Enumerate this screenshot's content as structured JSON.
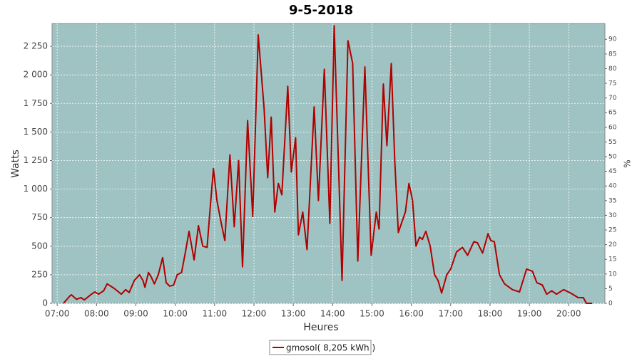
{
  "chart_data": {
    "type": "line",
    "title": "9-5-2018",
    "x_label": "Heures",
    "y_label": "Watts",
    "y2_label": "%",
    "x": [
      7.16,
      7.31,
      7.36,
      7.49,
      7.6,
      7.69,
      7.87,
      7.96,
      8.05,
      8.18,
      8.27,
      8.45,
      8.63,
      8.74,
      8.83,
      8.96,
      9.09,
      9.18,
      9.23,
      9.32,
      9.39,
      9.47,
      9.57,
      9.68,
      9.77,
      9.86,
      9.96,
      10.05,
      10.16,
      10.26,
      10.35,
      10.48,
      10.59,
      10.7,
      10.81,
      10.88,
      10.97,
      11.06,
      11.17,
      11.26,
      11.39,
      11.5,
      11.61,
      11.71,
      11.84,
      11.97,
      12.11,
      12.26,
      12.35,
      12.44,
      12.53,
      12.62,
      12.71,
      12.86,
      12.95,
      13.06,
      13.13,
      13.24,
      13.35,
      13.53,
      13.64,
      13.79,
      13.93,
      14.04,
      14.15,
      14.24,
      14.39,
      14.51,
      14.64,
      14.82,
      14.98,
      15.11,
      15.18,
      15.29,
      15.38,
      15.49,
      15.58,
      15.67,
      15.85,
      15.94,
      16.03,
      16.12,
      16.21,
      16.28,
      16.37,
      16.48,
      16.59,
      16.68,
      16.77,
      16.9,
      17.0,
      17.15,
      17.3,
      17.43,
      17.59,
      17.68,
      17.81,
      17.95,
      18.02,
      18.11,
      18.24,
      18.37,
      18.57,
      18.75,
      18.93,
      19.08,
      19.19,
      19.33,
      19.44,
      19.57,
      19.69,
      19.87,
      20.05,
      20.24,
      20.37,
      20.45,
      20.6
    ],
    "series": [
      {
        "name": "gmosol( 8,205 kWh )",
        "color": "#b00000",
        "values": [
          0,
          60,
          75,
          35,
          50,
          30,
          80,
          100,
          80,
          110,
          170,
          130,
          80,
          120,
          95,
          200,
          250,
          200,
          140,
          270,
          230,
          170,
          250,
          400,
          180,
          150,
          160,
          250,
          270,
          450,
          630,
          380,
          680,
          500,
          490,
          800,
          1180,
          900,
          700,
          550,
          1300,
          670,
          1250,
          320,
          1600,
          760,
          2350,
          1700,
          1100,
          1630,
          800,
          1050,
          950,
          1900,
          1150,
          1450,
          600,
          800,
          470,
          1720,
          900,
          2050,
          700,
          2430,
          1200,
          200,
          2300,
          2100,
          370,
          2070,
          420,
          800,
          650,
          1920,
          1380,
          2100,
          1250,
          620,
          800,
          1050,
          900,
          500,
          580,
          560,
          630,
          500,
          250,
          200,
          90,
          250,
          300,
          450,
          490,
          420,
          540,
          530,
          440,
          610,
          550,
          540,
          250,
          170,
          120,
          100,
          300,
          280,
          180,
          160,
          80,
          110,
          80,
          120,
          90,
          50,
          50,
          0,
          0
        ]
      }
    ],
    "xlim": [
      6.87,
      20.92
    ],
    "xticks": [
      {
        "value": 7,
        "label": "07:00"
      },
      {
        "value": 8,
        "label": "08:00"
      },
      {
        "value": 9,
        "label": "09:00"
      },
      {
        "value": 10,
        "label": "10:00"
      },
      {
        "value": 11,
        "label": "11:00"
      },
      {
        "value": 12,
        "label": "12:00"
      },
      {
        "value": 13,
        "label": "13:00"
      },
      {
        "value": 14,
        "label": "14:00"
      },
      {
        "value": 15,
        "label": "15:00"
      },
      {
        "value": 16,
        "label": "16:00"
      },
      {
        "value": 17,
        "label": "17:00"
      },
      {
        "value": 18,
        "label": "18:00"
      },
      {
        "value": 19,
        "label": "19:00"
      },
      {
        "value": 20,
        "label": "20:00"
      }
    ],
    "ylim": [
      0,
      2450
    ],
    "yticks": [
      0,
      250,
      500,
      750,
      {
        "value": 1000,
        "label": "1 000"
      },
      {
        "value": 1250,
        "label": "1 250"
      },
      {
        "value": 1500,
        "label": "1 500"
      },
      {
        "value": 1750,
        "label": "1 750"
      },
      {
        "value": 2000,
        "label": "2 000"
      },
      {
        "value": 2250,
        "label": "2 250"
      }
    ],
    "y2lim": [
      0,
      95.4
    ],
    "y2ticks": [
      0,
      5,
      10,
      15,
      20,
      25,
      30,
      35,
      40,
      45,
      50,
      55,
      60,
      65,
      70,
      75,
      80,
      85,
      90
    ],
    "grid": true,
    "background": "#9fc3c3",
    "legend": "bottom"
  }
}
